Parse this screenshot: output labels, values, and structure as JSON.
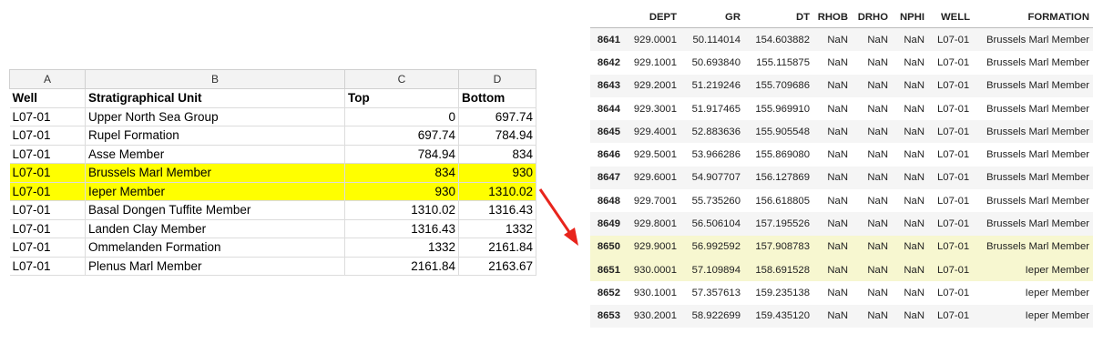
{
  "spreadsheet": {
    "column_letters": [
      "A",
      "B",
      "C",
      "D"
    ],
    "header": [
      "Well",
      "Stratigraphical Unit",
      "Top",
      "Bottom"
    ],
    "rows": [
      [
        "L07-01",
        "Upper North Sea Group",
        "0",
        "697.74"
      ],
      [
        "L07-01",
        "Rupel Formation",
        "697.74",
        "784.94"
      ],
      [
        "L07-01",
        "Asse Member",
        "784.94",
        "834"
      ],
      [
        "L07-01",
        "Brussels Marl Member",
        "834",
        "930"
      ],
      [
        "L07-01",
        "Ieper Member",
        "930",
        "1310.02"
      ],
      [
        "L07-01",
        "Basal Dongen Tuffite Member",
        "1310.02",
        "1316.43"
      ],
      [
        "L07-01",
        "Landen Clay Member",
        "1316.43",
        "1332"
      ],
      [
        "L07-01",
        "Ommelanden Formation",
        "1332",
        "2161.84"
      ],
      [
        "L07-01",
        "Plenus Marl Member",
        "2161.84",
        "2163.67"
      ]
    ],
    "highlighted_rows": [
      3,
      4
    ],
    "highlight_color": "#ffff00"
  },
  "dataframe": {
    "columns": [
      "DEPT",
      "GR",
      "DT",
      "RHOB",
      "DRHO",
      "NPHI",
      "WELL",
      "FORMATION"
    ],
    "index": [
      "8641",
      "8642",
      "8643",
      "8644",
      "8645",
      "8646",
      "8647",
      "8648",
      "8649",
      "8650",
      "8651",
      "8652",
      "8653"
    ],
    "rows": [
      [
        "929.0001",
        "50.114014",
        "154.603882",
        "NaN",
        "NaN",
        "NaN",
        "L07-01",
        "Brussels Marl Member"
      ],
      [
        "929.1001",
        "50.693840",
        "155.115875",
        "NaN",
        "NaN",
        "NaN",
        "L07-01",
        "Brussels Marl Member"
      ],
      [
        "929.2001",
        "51.219246",
        "155.709686",
        "NaN",
        "NaN",
        "NaN",
        "L07-01",
        "Brussels Marl Member"
      ],
      [
        "929.3001",
        "51.917465",
        "155.969910",
        "NaN",
        "NaN",
        "NaN",
        "L07-01",
        "Brussels Marl Member"
      ],
      [
        "929.4001",
        "52.883636",
        "155.905548",
        "NaN",
        "NaN",
        "NaN",
        "L07-01",
        "Brussels Marl Member"
      ],
      [
        "929.5001",
        "53.966286",
        "155.869080",
        "NaN",
        "NaN",
        "NaN",
        "L07-01",
        "Brussels Marl Member"
      ],
      [
        "929.6001",
        "54.907707",
        "156.127869",
        "NaN",
        "NaN",
        "NaN",
        "L07-01",
        "Brussels Marl Member"
      ],
      [
        "929.7001",
        "55.735260",
        "156.618805",
        "NaN",
        "NaN",
        "NaN",
        "L07-01",
        "Brussels Marl Member"
      ],
      [
        "929.8001",
        "56.506104",
        "157.195526",
        "NaN",
        "NaN",
        "NaN",
        "L07-01",
        "Brussels Marl Member"
      ],
      [
        "929.9001",
        "56.992592",
        "157.908783",
        "NaN",
        "NaN",
        "NaN",
        "L07-01",
        "Brussels Marl Member"
      ],
      [
        "930.0001",
        "57.109894",
        "158.691528",
        "NaN",
        "NaN",
        "NaN",
        "L07-01",
        "Ieper Member"
      ],
      [
        "930.1001",
        "57.357613",
        "159.235138",
        "NaN",
        "NaN",
        "NaN",
        "L07-01",
        "Ieper Member"
      ],
      [
        "930.2001",
        "58.922699",
        "159.435120",
        "NaN",
        "NaN",
        "NaN",
        "L07-01",
        "Ieper Member"
      ]
    ],
    "highlighted_rows": [
      9,
      10
    ],
    "highlight_color": "#f7f7d0"
  }
}
